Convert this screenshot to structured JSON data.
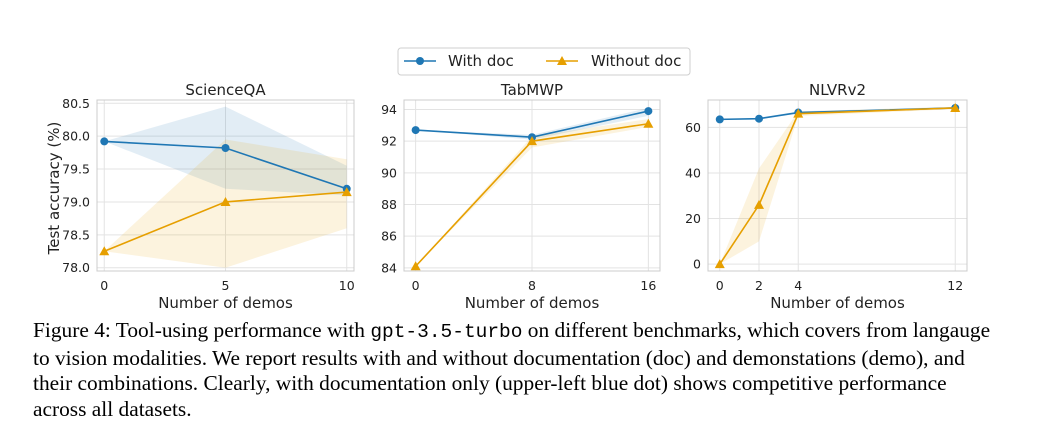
{
  "legend": [
    {
      "label": "With doc",
      "color": "#1f77b4",
      "marker": "circle"
    },
    {
      "label": "Without doc",
      "color": "#e69f00",
      "marker": "triangle"
    }
  ],
  "ylabel": "Test accuracy (%)",
  "xlabel": "Number of demos",
  "chart_data": [
    {
      "type": "line",
      "title": "ScienceQA",
      "xlabel": "Number of demos",
      "ylabel": "Test accuracy (%)",
      "xlim": [
        -0.3,
        10.3
      ],
      "ylim": [
        77.95,
        80.55
      ],
      "xticks": [
        0,
        5,
        10
      ],
      "yticks": [
        78.0,
        78.5,
        79.0,
        79.5,
        80.0,
        80.5
      ],
      "grid": true,
      "series": [
        {
          "name": "With doc",
          "color": "#1f77b4",
          "x": [
            0,
            5,
            10
          ],
          "y": [
            79.92,
            79.82,
            79.2
          ],
          "band_low": [
            79.92,
            79.2,
            79.1
          ],
          "band_high": [
            79.92,
            80.45,
            79.55
          ]
        },
        {
          "name": "Without doc",
          "color": "#e69f00",
          "x": [
            0,
            5,
            10
          ],
          "y": [
            78.25,
            79.0,
            79.15
          ],
          "band_low": [
            78.25,
            78.0,
            78.6
          ],
          "band_high": [
            78.25,
            79.95,
            79.65
          ]
        }
      ]
    },
    {
      "type": "line",
      "title": "TabMWP",
      "xlabel": "Number of demos",
      "ylabel": "",
      "xlim": [
        -0.8,
        16.8
      ],
      "ylim": [
        83.8,
        94.6
      ],
      "xticks": [
        0,
        8,
        16
      ],
      "yticks": [
        84,
        86,
        88,
        90,
        92,
        94
      ],
      "grid": true,
      "series": [
        {
          "name": "With doc",
          "color": "#1f77b4",
          "x": [
            0,
            8,
            16
          ],
          "y": [
            92.7,
            92.25,
            93.9
          ],
          "band_low": [
            92.7,
            92.1,
            93.6
          ],
          "band_high": [
            92.7,
            92.4,
            94.1
          ]
        },
        {
          "name": "Without doc",
          "color": "#e69f00",
          "x": [
            0,
            8,
            16
          ],
          "y": [
            84.1,
            92.0,
            93.1
          ],
          "band_low": [
            84.1,
            91.6,
            92.9
          ],
          "band_high": [
            84.1,
            92.3,
            93.4
          ]
        }
      ]
    },
    {
      "type": "line",
      "title": "NLVRv2",
      "xlabel": "Number of demos",
      "ylabel": "",
      "xlim": [
        -0.6,
        12.6
      ],
      "ylim": [
        -3,
        72
      ],
      "xticks": [
        0,
        2,
        4,
        12
      ],
      "yticks": [
        0,
        20,
        40,
        60
      ],
      "grid": true,
      "series": [
        {
          "name": "With doc",
          "color": "#1f77b4",
          "x": [
            0,
            2,
            4,
            12
          ],
          "y": [
            63.5,
            63.8,
            66.5,
            68.5
          ],
          "band_low": [
            63.5,
            63.5,
            66.0,
            68.0
          ],
          "band_high": [
            63.5,
            64.2,
            67.0,
            69.0
          ]
        },
        {
          "name": "Without doc",
          "color": "#e69f00",
          "x": [
            0,
            2,
            4,
            12
          ],
          "y": [
            0,
            26,
            66,
            68.5
          ],
          "band_low": [
            0,
            10,
            65,
            68.0
          ],
          "band_high": [
            0,
            42,
            67,
            69.0
          ]
        }
      ]
    }
  ],
  "caption": {
    "lead": "Figure 4: Tool-using performance with ",
    "code": "gpt-3.5-turbo",
    "rest": " on different benchmarks, which covers from langauge to vision modalities. We report results with and without documentation (doc) and demonstations (demo), and their combinations. Clearly, with documentation only (upper-left blue dot) shows competitive performance across all datasets."
  }
}
